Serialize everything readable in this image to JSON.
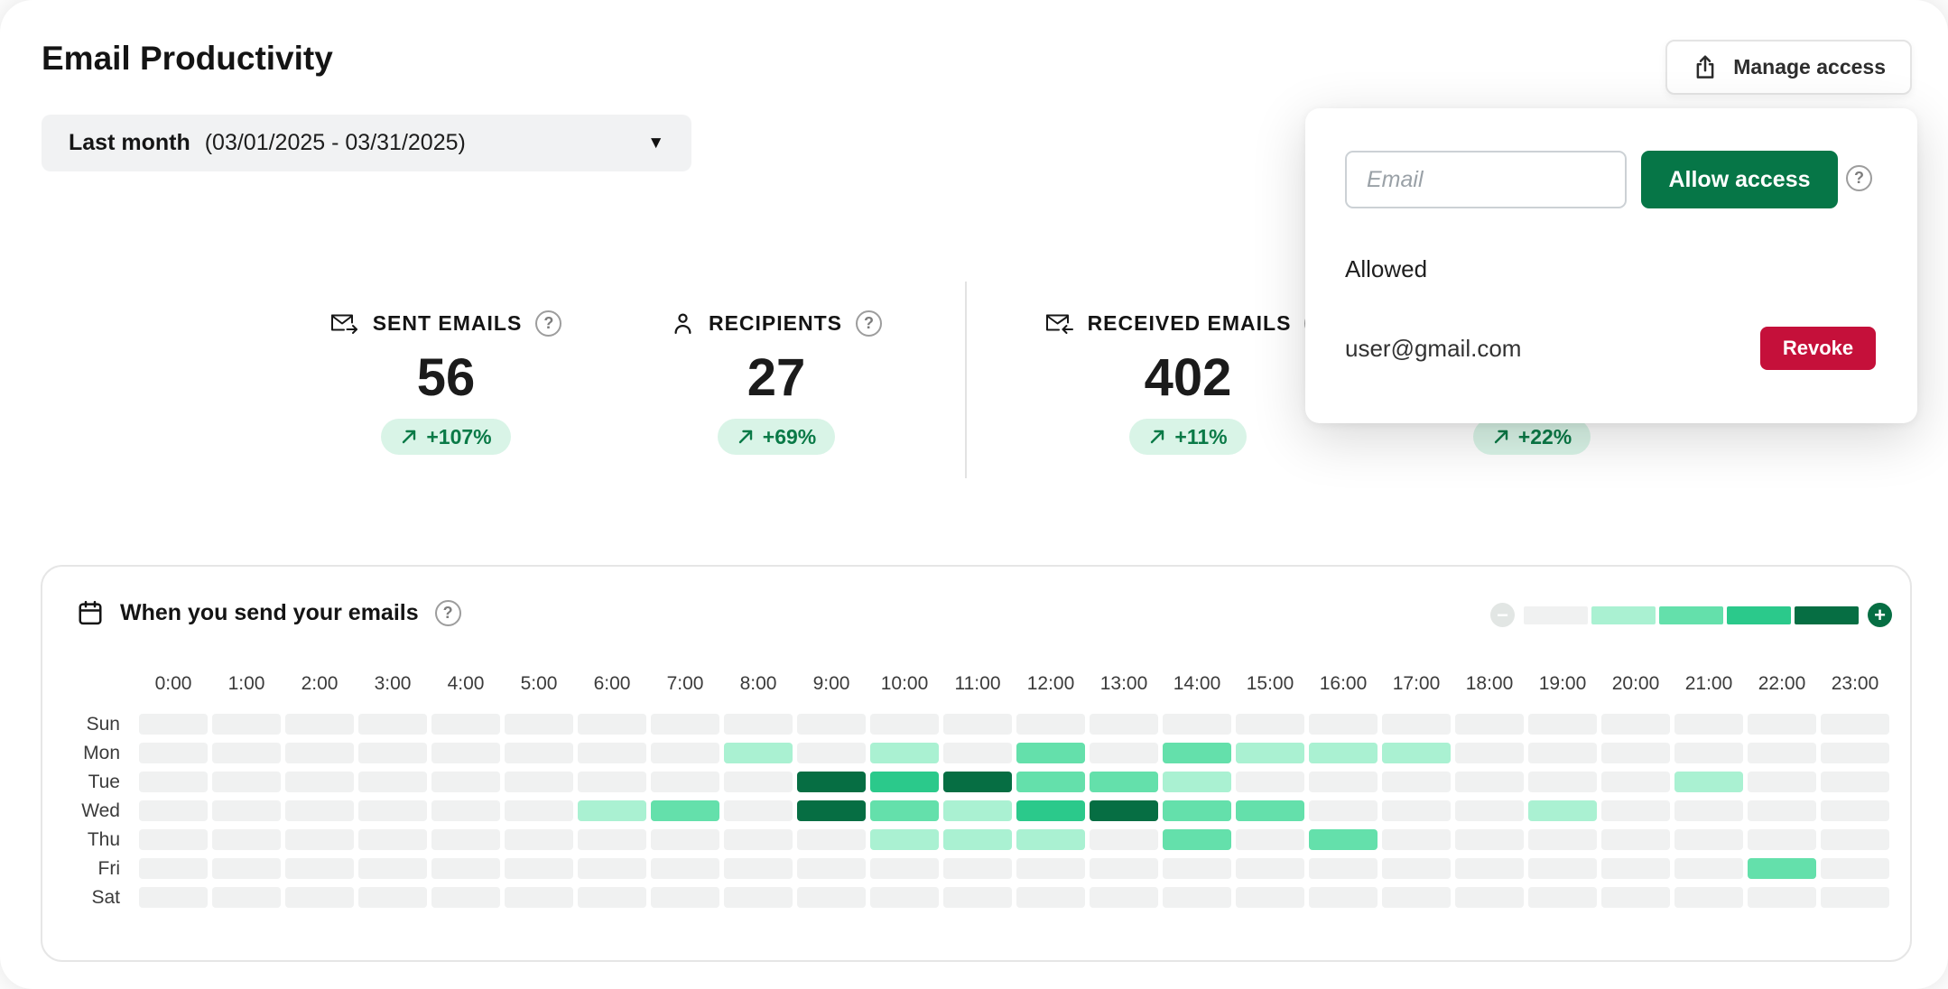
{
  "colors": {
    "accent_green": "#067647",
    "accent_green_dark": "#066e43",
    "badge_bg": "#d9f4e7",
    "badge_text": "#0a7a47",
    "revoke_red": "#c5103a",
    "heat_levels": [
      "#f0f1f1",
      "#aaf1d2",
      "#64e0ab",
      "#2bc98b",
      "#066e43"
    ]
  },
  "icons": {
    "help": "?",
    "minus": "−",
    "plus": "+",
    "caret_down": "▼"
  },
  "header": {
    "title": "Email Productivity",
    "manage_access": "Manage access"
  },
  "date_filter": {
    "label": "Last month",
    "range": "(03/01/2025 - 03/31/2025)"
  },
  "stats": [
    {
      "icon": "mail-sent-icon",
      "label": "SENT EMAILS",
      "value": "56",
      "change": "+107%"
    },
    {
      "icon": "person-icon",
      "label": "RECIPIENTS",
      "value": "27",
      "change": "+69%"
    },
    {
      "icon": "mail-received-icon",
      "label": "RECEIVED EMAILS",
      "value": "402",
      "change": "+11%"
    },
    {
      "change": "+22%"
    }
  ],
  "access_popup": {
    "email_placeholder": "Email",
    "allow_button": "Allow access",
    "allowed_heading": "Allowed",
    "allowed_users": [
      {
        "email": "user@gmail.com",
        "revoke_button": "Revoke"
      }
    ]
  },
  "chart_data": {
    "type": "heatmap",
    "title": "When you send your emails",
    "x_labels": [
      "0:00",
      "1:00",
      "2:00",
      "3:00",
      "4:00",
      "5:00",
      "6:00",
      "7:00",
      "8:00",
      "9:00",
      "10:00",
      "11:00",
      "12:00",
      "13:00",
      "14:00",
      "15:00",
      "16:00",
      "17:00",
      "18:00",
      "19:00",
      "20:00",
      "21:00",
      "22:00",
      "23:00"
    ],
    "y_labels": [
      "Sun",
      "Mon",
      "Tue",
      "Wed",
      "Thu",
      "Fri",
      "Sat"
    ],
    "levels": [
      [
        0,
        0,
        0,
        0,
        0,
        0,
        0,
        0,
        0,
        0,
        0,
        0,
        0,
        0,
        0,
        0,
        0,
        0,
        0,
        0,
        0,
        0,
        0,
        0
      ],
      [
        0,
        0,
        0,
        0,
        0,
        0,
        0,
        0,
        1,
        0,
        1,
        0,
        2,
        0,
        2,
        1,
        1,
        1,
        0,
        0,
        0,
        0,
        0,
        0
      ],
      [
        0,
        0,
        0,
        0,
        0,
        0,
        0,
        0,
        0,
        4,
        3,
        4,
        2,
        2,
        1,
        0,
        0,
        0,
        0,
        0,
        0,
        1,
        0,
        0
      ],
      [
        0,
        0,
        0,
        0,
        0,
        0,
        1,
        2,
        0,
        4,
        2,
        1,
        3,
        4,
        2,
        2,
        0,
        0,
        0,
        1,
        0,
        0,
        0,
        0
      ],
      [
        0,
        0,
        0,
        0,
        0,
        0,
        0,
        0,
        0,
        0,
        1,
        1,
        1,
        0,
        2,
        0,
        2,
        0,
        0,
        0,
        0,
        0,
        0,
        0
      ],
      [
        0,
        0,
        0,
        0,
        0,
        0,
        0,
        0,
        0,
        0,
        0,
        0,
        0,
        0,
        0,
        0,
        0,
        0,
        0,
        0,
        0,
        0,
        2,
        0
      ],
      [
        0,
        0,
        0,
        0,
        0,
        0,
        0,
        0,
        0,
        0,
        0,
        0,
        0,
        0,
        0,
        0,
        0,
        0,
        0,
        0,
        0,
        0,
        0,
        0
      ]
    ],
    "legend": {
      "steps": 5,
      "position": "top-right",
      "scale": "0 = none, 4 = most emails sent"
    }
  }
}
